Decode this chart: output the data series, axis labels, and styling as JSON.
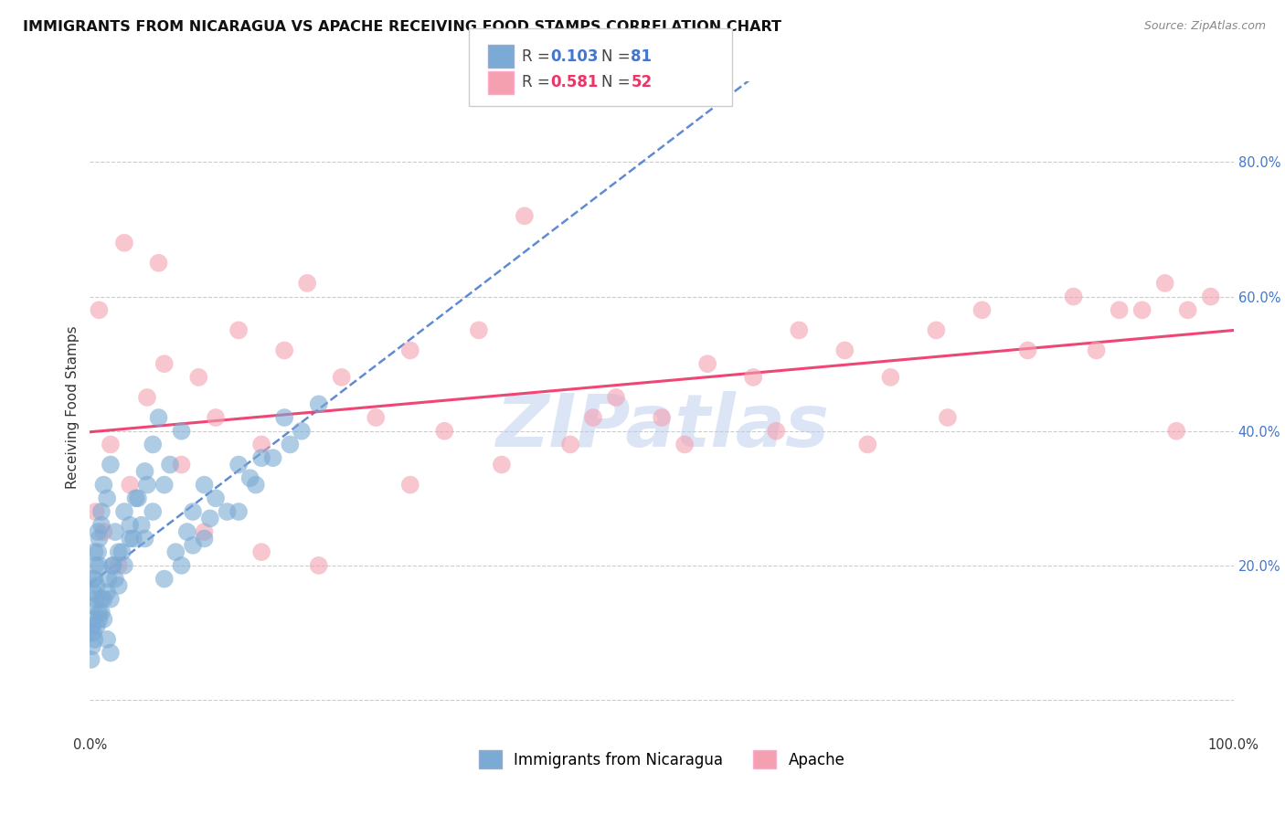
{
  "title": "IMMIGRANTS FROM NICARAGUA VS APACHE RECEIVING FOOD STAMPS CORRELATION CHART",
  "source": "Source: ZipAtlas.com",
  "ylabel": "Receiving Food Stamps",
  "xlim": [
    0.0,
    1.0
  ],
  "ylim": [
    -0.05,
    0.92
  ],
  "yticks": [
    0.0,
    0.2,
    0.4,
    0.6,
    0.8
  ],
  "ytick_labels": [
    "",
    "20.0%",
    "40.0%",
    "60.0%",
    "80.0%"
  ],
  "xtick_positions": [
    0.0,
    0.25,
    0.5,
    0.75,
    1.0
  ],
  "xtick_labels": [
    "0.0%",
    "",
    "",
    "",
    "100.0%"
  ],
  "legend_r1": "0.103",
  "legend_n1": "81",
  "legend_r2": "0.581",
  "legend_n2": "52",
  "label_blue": "Immigrants from Nicaragua",
  "label_pink": "Apache",
  "scatter_blue_color": "#7BAAD4",
  "scatter_pink_color": "#F4A0B0",
  "line_blue_color": "#4477CC",
  "line_pink_color": "#EE3366",
  "watermark_color": "#B8CCEE",
  "background_color": "#FFFFFF",
  "grid_color": "#CCCCCC",
  "title_color": "#111111",
  "ytick_color": "#4477CC",
  "xtick_color": "#333333",
  "title_fontsize": 11.5,
  "axis_label_fontsize": 11,
  "tick_fontsize": 10.5,
  "legend_fontsize": 12,
  "source_fontsize": 9,
  "blue_x": [
    0.005,
    0.003,
    0.008,
    0.002,
    0.001,
    0.004,
    0.007,
    0.006,
    0.003,
    0.002,
    0.01,
    0.012,
    0.008,
    0.005,
    0.003,
    0.015,
    0.018,
    0.01,
    0.007,
    0.004,
    0.02,
    0.022,
    0.016,
    0.012,
    0.008,
    0.025,
    0.03,
    0.02,
    0.015,
    0.01,
    0.035,
    0.04,
    0.028,
    0.022,
    0.018,
    0.045,
    0.05,
    0.038,
    0.03,
    0.025,
    0.002,
    0.001,
    0.003,
    0.004,
    0.006,
    0.008,
    0.01,
    0.012,
    0.015,
    0.018,
    0.055,
    0.06,
    0.048,
    0.042,
    0.035,
    0.07,
    0.08,
    0.065,
    0.055,
    0.048,
    0.09,
    0.1,
    0.085,
    0.075,
    0.065,
    0.11,
    0.13,
    0.105,
    0.09,
    0.08,
    0.15,
    0.17,
    0.14,
    0.12,
    0.1,
    0.2,
    0.185,
    0.16,
    0.145,
    0.13,
    0.175
  ],
  "blue_y": [
    0.15,
    0.18,
    0.2,
    0.12,
    0.1,
    0.22,
    0.25,
    0.17,
    0.14,
    0.11,
    0.28,
    0.32,
    0.24,
    0.2,
    0.16,
    0.3,
    0.35,
    0.26,
    0.22,
    0.18,
    0.2,
    0.25,
    0.18,
    0.15,
    0.12,
    0.22,
    0.28,
    0.2,
    0.16,
    0.13,
    0.24,
    0.3,
    0.22,
    0.18,
    0.15,
    0.26,
    0.32,
    0.24,
    0.2,
    0.17,
    0.08,
    0.06,
    0.1,
    0.09,
    0.11,
    0.13,
    0.15,
    0.12,
    0.09,
    0.07,
    0.38,
    0.42,
    0.34,
    0.3,
    0.26,
    0.35,
    0.4,
    0.32,
    0.28,
    0.24,
    0.28,
    0.32,
    0.25,
    0.22,
    0.18,
    0.3,
    0.35,
    0.27,
    0.23,
    0.2,
    0.36,
    0.42,
    0.33,
    0.28,
    0.24,
    0.44,
    0.4,
    0.36,
    0.32,
    0.28,
    0.38
  ],
  "pink_x": [
    0.005,
    0.008,
    0.012,
    0.018,
    0.025,
    0.035,
    0.05,
    0.065,
    0.08,
    0.095,
    0.11,
    0.13,
    0.15,
    0.17,
    0.19,
    0.22,
    0.25,
    0.28,
    0.31,
    0.34,
    0.38,
    0.42,
    0.46,
    0.5,
    0.54,
    0.58,
    0.62,
    0.66,
    0.7,
    0.74,
    0.78,
    0.82,
    0.86,
    0.9,
    0.94,
    0.96,
    0.98,
    0.95,
    0.92,
    0.88,
    0.75,
    0.68,
    0.6,
    0.52,
    0.44,
    0.36,
    0.28,
    0.2,
    0.15,
    0.1,
    0.06,
    0.03
  ],
  "pink_y": [
    0.28,
    0.58,
    0.25,
    0.38,
    0.2,
    0.32,
    0.45,
    0.5,
    0.35,
    0.48,
    0.42,
    0.55,
    0.38,
    0.52,
    0.62,
    0.48,
    0.42,
    0.52,
    0.4,
    0.55,
    0.72,
    0.38,
    0.45,
    0.42,
    0.5,
    0.48,
    0.55,
    0.52,
    0.48,
    0.55,
    0.58,
    0.52,
    0.6,
    0.58,
    0.62,
    0.58,
    0.6,
    0.4,
    0.58,
    0.52,
    0.42,
    0.38,
    0.4,
    0.38,
    0.42,
    0.35,
    0.32,
    0.2,
    0.22,
    0.25,
    0.65,
    0.68
  ]
}
